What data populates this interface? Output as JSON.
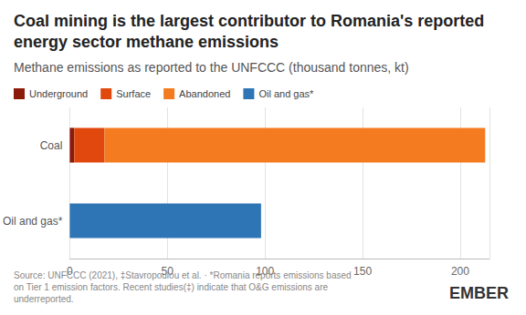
{
  "chart_data": {
    "type": "bar",
    "orientation": "horizontal",
    "stacked": true,
    "title": "Coal mining is the largest contributor to Romania's reported energy sector methane emissions",
    "subtitle": "Methane emissions as reported to the UNFCCC (thousand tonnes, kt)",
    "source": "Source: UNFCCC (2021), ‡Stavropoulou et al. · *Romania reports emissions based on Tier 1 emission factors. Recent studies(‡) indicate that O&G emissions are underreported.",
    "logo": "EMBER",
    "categories": [
      "Coal",
      "Oil and gas*"
    ],
    "series": [
      {
        "name": "Underground",
        "color": "#8c1a0b",
        "values": [
          2.3,
          null
        ]
      },
      {
        "name": "Surface",
        "color": "#e0480e",
        "values": [
          15.5,
          null
        ]
      },
      {
        "name": "Abandoned",
        "color": "#f47b20",
        "values": [
          195,
          null
        ]
      },
      {
        "name": "Oil and gas*",
        "color": "#2e75b6",
        "values": [
          null,
          98
        ]
      }
    ],
    "xlim": [
      0,
      215
    ],
    "xticks": [
      0,
      50,
      100,
      150,
      200
    ],
    "grid": true,
    "legend": "top-left"
  }
}
